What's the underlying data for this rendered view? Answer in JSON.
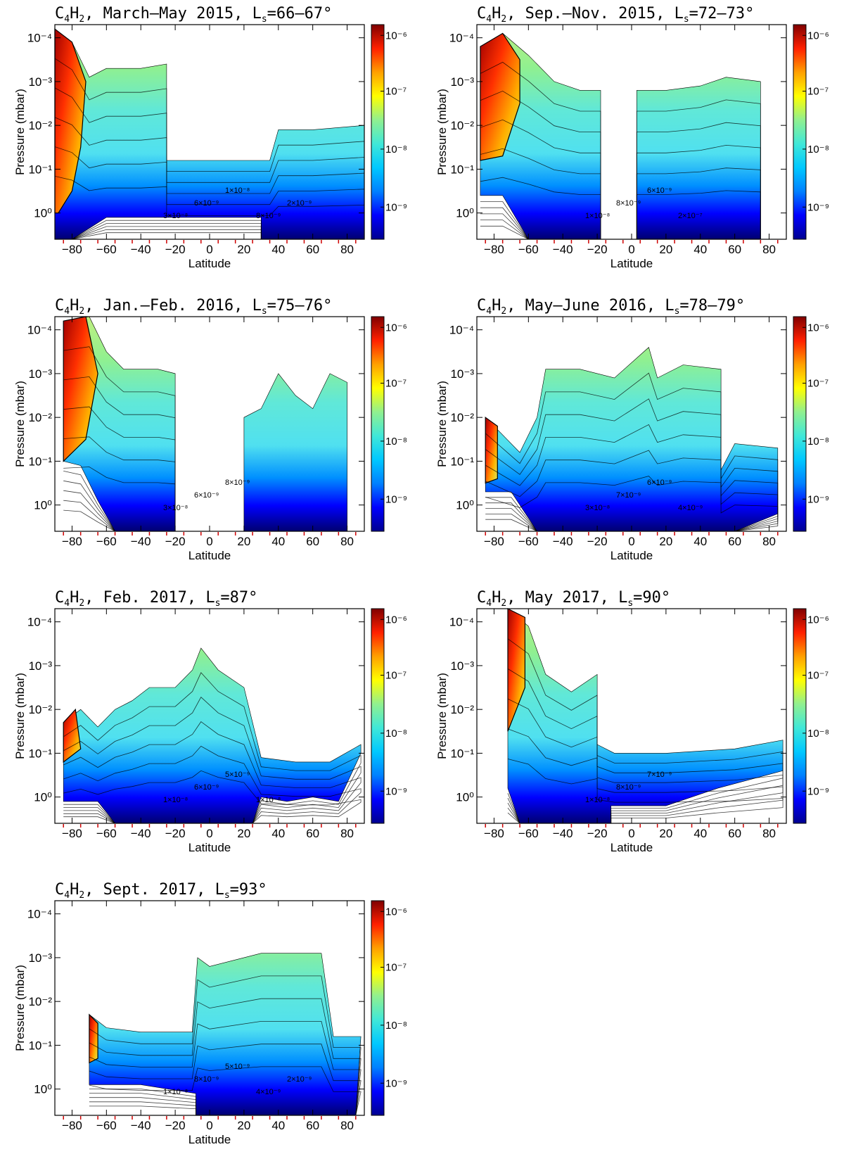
{
  "figure": {
    "colorscale": {
      "type": "jet",
      "colors": [
        "#000090",
        "#0000ff",
        "#0080ff",
        "#00c8ff",
        "#40e8d8",
        "#90f090",
        "#ffff00",
        "#ffa000",
        "#ff2000",
        "#800000"
      ],
      "ticks": [
        "10⁻⁹",
        "10⁻⁸",
        "10⁻⁷",
        "10⁻⁶"
      ]
    },
    "x_ticks": [
      "-80",
      "-60",
      "-40",
      "-20",
      "0",
      "20",
      "40",
      "60",
      "80"
    ],
    "y_ticks": [
      "10⁻⁴",
      "10⁻³",
      "10⁻²",
      "10⁻¹",
      "10⁰"
    ],
    "xlabel": "Latitude",
    "ylabel": "Pressure (mbar)"
  },
  "chart_data": [
    {
      "type": "heatmap",
      "title_pre": "C",
      "title_sub1": "4",
      "title_mid": "H",
      "title_sub2": "2",
      "title_post": ", March–May 2015, L",
      "title_sub3": "s",
      "title_tail": "=66–67°",
      "xlim": [
        -90,
        90
      ],
      "ylim_log10_pressure_mbar": [
        0.6,
        -4.3
      ],
      "coverage": [
        [
          -90,
          -4.2
        ],
        [
          -80,
          -3.9
        ],
        [
          -70,
          -3.1
        ],
        [
          -60,
          -3.3
        ],
        [
          -40,
          -3.3
        ],
        [
          -25,
          -3.4
        ],
        [
          -25,
          -1.2
        ],
        [
          -20,
          -1.2
        ],
        [
          35,
          -1.2
        ],
        [
          40,
          -1.9
        ],
        [
          60,
          -1.9
        ],
        [
          90,
          -2.0
        ],
        [
          90,
          0.6
        ],
        [
          30,
          0.6
        ],
        [
          30,
          0.1
        ],
        [
          -60,
          0.1
        ],
        [
          -80,
          0.6
        ],
        [
          -90,
          0.6
        ]
      ],
      "high_region": [
        [
          -90,
          -4.2
        ],
        [
          -80,
          -3.9
        ],
        [
          -72,
          -3.0
        ],
        [
          -75,
          -1.5
        ],
        [
          -80,
          -0.5
        ],
        [
          -88,
          0.0
        ],
        [
          -90,
          0.0
        ]
      ],
      "contour_labels": [
        "3×10⁻⁸",
        "6×10⁻⁹",
        "1×10⁻⁸",
        "8×10⁻⁹",
        "2×10⁻⁹"
      ]
    },
    {
      "type": "heatmap",
      "title_pre": "C",
      "title_sub1": "4",
      "title_mid": "H",
      "title_sub2": "2",
      "title_post": ", Sep.–Nov. 2015, L",
      "title_sub3": "s",
      "title_tail": "=72–73°",
      "xlim": [
        -90,
        90
      ],
      "ylim_log10_pressure_mbar": [
        0.6,
        -4.3
      ],
      "coverage": [
        [
          -88,
          -3.8
        ],
        [
          -75,
          -4.1
        ],
        [
          -60,
          -3.6
        ],
        [
          -45,
          -3.0
        ],
        [
          -30,
          -2.8
        ],
        [
          -18,
          -2.8
        ],
        [
          -18,
          0.6
        ],
        [
          3,
          0.6
        ],
        [
          3,
          -2.8
        ],
        [
          20,
          -2.8
        ],
        [
          40,
          -2.9
        ],
        [
          55,
          -3.1
        ],
        [
          75,
          -3.0
        ],
        [
          75,
          0.6
        ],
        [
          -60,
          0.6
        ],
        [
          -75,
          -0.4
        ],
        [
          -88,
          -0.4
        ]
      ],
      "high_region": [
        [
          -88,
          -3.8
        ],
        [
          -75,
          -4.1
        ],
        [
          -65,
          -3.5
        ],
        [
          -65,
          -2.5
        ],
        [
          -75,
          -1.3
        ],
        [
          -88,
          -1.2
        ]
      ],
      "contour_labels": [
        "1×10⁻⁸",
        "8×10⁻⁹",
        "6×10⁻⁹",
        "2×10⁻⁷"
      ]
    },
    {
      "type": "heatmap",
      "title_pre": "C",
      "title_sub1": "4",
      "title_mid": "H",
      "title_sub2": "2",
      "title_post": ", Jan.–Feb. 2016, L",
      "title_sub3": "s",
      "title_tail": "=75–76°",
      "xlim": [
        -90,
        90
      ],
      "ylim_log10_pressure_mbar": [
        0.6,
        -4.3
      ],
      "coverage": [
        [
          -85,
          -4.2
        ],
        [
          -70,
          -4.3
        ],
        [
          -60,
          -3.5
        ],
        [
          -50,
          -3.1
        ],
        [
          -30,
          -3.1
        ],
        [
          -20,
          -3.0
        ],
        [
          -20,
          0.6
        ],
        [
          -55,
          0.6
        ],
        [
          -65,
          -0.1
        ],
        [
          -75,
          -0.9
        ],
        [
          -85,
          -1.0
        ]
      ],
      "coverage2": [
        [
          20,
          -2.0
        ],
        [
          30,
          -2.2
        ],
        [
          40,
          -3.0
        ],
        [
          50,
          -2.5
        ],
        [
          60,
          -2.2
        ],
        [
          70,
          -3.0
        ],
        [
          80,
          -2.8
        ],
        [
          80,
          0.6
        ],
        [
          20,
          0.6
        ]
      ],
      "high_region": [
        [
          -85,
          -4.2
        ],
        [
          -72,
          -4.3
        ],
        [
          -65,
          -3.0
        ],
        [
          -72,
          -1.5
        ],
        [
          -85,
          -1.0
        ]
      ],
      "contour_labels": [
        "3×10⁻⁸",
        "6×10⁻⁹",
        "8×10⁻⁹"
      ]
    },
    {
      "type": "heatmap",
      "title_pre": "C",
      "title_sub1": "4",
      "title_mid": "H",
      "title_sub2": "2",
      "title_post": ", May–June 2016, L",
      "title_sub3": "s",
      "title_tail": "=78–79°",
      "xlim": [
        -90,
        90
      ],
      "ylim_log10_pressure_mbar": [
        0.6,
        -4.3
      ],
      "coverage": [
        [
          -85,
          -2.0
        ],
        [
          -75,
          -1.6
        ],
        [
          -65,
          -1.2
        ],
        [
          -55,
          -2.0
        ],
        [
          -50,
          -3.1
        ],
        [
          -30,
          -3.1
        ],
        [
          -10,
          -2.9
        ],
        [
          10,
          -3.6
        ],
        [
          15,
          -2.9
        ],
        [
          30,
          -3.2
        ],
        [
          52,
          -3.1
        ],
        [
          52,
          -0.8
        ],
        [
          60,
          -1.4
        ],
        [
          85,
          -1.3
        ],
        [
          85,
          0.2
        ],
        [
          60,
          0.6
        ],
        [
          -55,
          0.6
        ],
        [
          -70,
          -0.3
        ],
        [
          -85,
          -0.3
        ]
      ],
      "high_region": [
        [
          -85,
          -2.0
        ],
        [
          -78,
          -1.8
        ],
        [
          -78,
          -0.6
        ],
        [
          -85,
          -0.5
        ]
      ],
      "contour_labels": [
        "3×10⁻⁸",
        "7×10⁻⁹",
        "6×10⁻⁹",
        "4×10⁻⁹"
      ]
    },
    {
      "type": "heatmap",
      "title_pre": "C",
      "title_sub1": "4",
      "title_mid": "H",
      "title_sub2": "2",
      "title_post": ", Feb. 2017, L",
      "title_sub3": "s",
      "title_tail": "=87°",
      "xlim": [
        -90,
        90
      ],
      "ylim_log10_pressure_mbar": [
        0.6,
        -4.3
      ],
      "coverage": [
        [
          -85,
          -1.7
        ],
        [
          -75,
          -2.0
        ],
        [
          -65,
          -1.6
        ],
        [
          -55,
          -2.0
        ],
        [
          -45,
          -2.2
        ],
        [
          -35,
          -2.5
        ],
        [
          -20,
          -2.5
        ],
        [
          -10,
          -2.9
        ],
        [
          -5,
          -3.4
        ],
        [
          5,
          -2.9
        ],
        [
          20,
          -2.5
        ],
        [
          30,
          -0.9
        ],
        [
          50,
          -0.8
        ],
        [
          70,
          -0.8
        ],
        [
          88,
          -1.2
        ],
        [
          88,
          -1.0
        ],
        [
          75,
          0.1
        ],
        [
          60,
          0.0
        ],
        [
          45,
          0.1
        ],
        [
          30,
          0.0
        ],
        [
          25,
          0.6
        ],
        [
          -55,
          0.6
        ],
        [
          -65,
          0.1
        ],
        [
          -85,
          0.1
        ]
      ],
      "high_region": [
        [
          -85,
          -1.7
        ],
        [
          -78,
          -2.0
        ],
        [
          -75,
          -1.1
        ],
        [
          -85,
          -0.8
        ]
      ],
      "contour_labels": [
        "1×10⁻⁸",
        "6×10⁻⁹",
        "5×10⁻⁹",
        "1×10⁻⁸"
      ]
    },
    {
      "type": "heatmap",
      "title_pre": "C",
      "title_sub1": "4",
      "title_mid": "H",
      "title_sub2": "2",
      "title_post": ", May 2017, L",
      "title_sub3": "s",
      "title_tail": "=90°",
      "xlim": [
        -90,
        90
      ],
      "ylim_log10_pressure_mbar": [
        0.6,
        -4.3
      ],
      "coverage": [
        [
          -72,
          -4.3
        ],
        [
          -60,
          -3.9
        ],
        [
          -50,
          -2.8
        ],
        [
          -35,
          -2.4
        ],
        [
          -20,
          -2.8
        ],
        [
          -20,
          -1.2
        ],
        [
          -10,
          -1.0
        ],
        [
          20,
          -1.0
        ],
        [
          60,
          -1.1
        ],
        [
          88,
          -1.3
        ],
        [
          88,
          -0.6
        ],
        [
          50,
          -0.2
        ],
        [
          20,
          0.2
        ],
        [
          -12,
          0.2
        ],
        [
          -12,
          0.6
        ],
        [
          -65,
          0.6
        ],
        [
          -72,
          -0.2
        ]
      ],
      "high_region": [
        [
          -72,
          -4.3
        ],
        [
          -62,
          -4.1
        ],
        [
          -62,
          -2.5
        ],
        [
          -72,
          -1.5
        ]
      ],
      "contour_labels": [
        "1×10⁻⁸",
        "8×10⁻⁹",
        "7×10⁻⁹"
      ]
    },
    {
      "type": "heatmap",
      "title_pre": "C",
      "title_sub1": "4",
      "title_mid": "H",
      "title_sub2": "2",
      "title_post": ", Sept. 2017, L",
      "title_sub3": "s",
      "title_tail": "=93°",
      "xlim": [
        -90,
        90
      ],
      "ylim_log10_pressure_mbar": [
        0.6,
        -4.3
      ],
      "coverage": [
        [
          -70,
          -1.7
        ],
        [
          -60,
          -1.4
        ],
        [
          -40,
          -1.3
        ],
        [
          -10,
          -1.3
        ],
        [
          -10,
          -1.4
        ],
        [
          -7,
          -3.0
        ],
        [
          0,
          -2.8
        ],
        [
          30,
          -3.1
        ],
        [
          65,
          -3.1
        ],
        [
          72,
          -1.2
        ],
        [
          88,
          -1.2
        ],
        [
          85,
          0.6
        ],
        [
          -8,
          0.6
        ],
        [
          -8,
          0.1
        ],
        [
          -40,
          -0.1
        ],
        [
          -70,
          -0.1
        ]
      ],
      "high_region": [
        [
          -70,
          -1.7
        ],
        [
          -65,
          -1.5
        ],
        [
          -65,
          -0.7
        ],
        [
          -70,
          -0.6
        ]
      ],
      "contour_labels": [
        "1×10⁻⁸",
        "8×10⁻⁹",
        "5×10⁻⁹",
        "4×10⁻⁹",
        "2×10⁻⁹"
      ]
    }
  ]
}
